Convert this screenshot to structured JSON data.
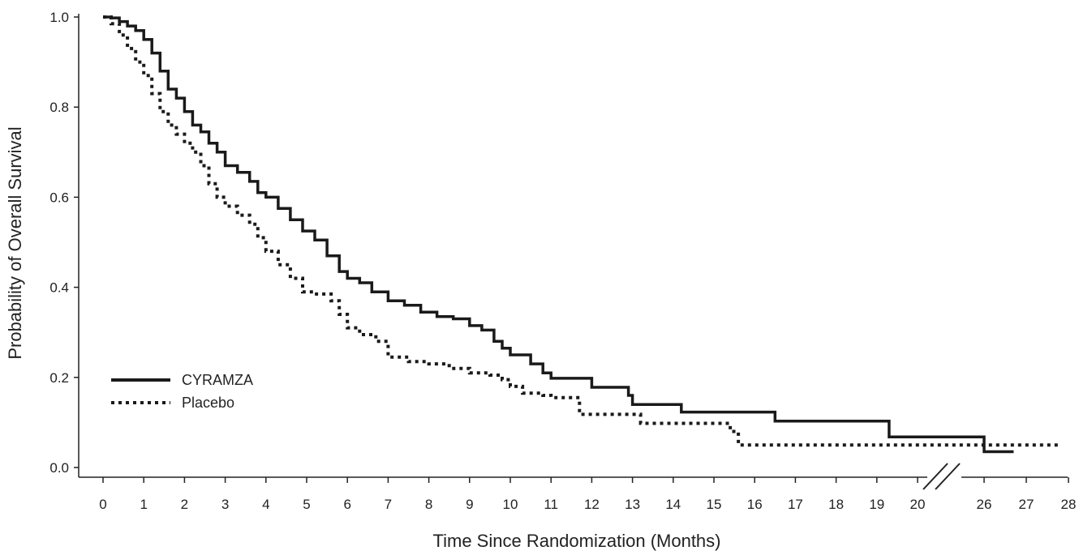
{
  "chart_data": {
    "type": "line",
    "title": "",
    "xlabel": "Time Since Randomization (Months)",
    "ylabel": "Probability of Overall Survival",
    "ylim": [
      0,
      1.0
    ],
    "y_ticks": [
      "0.0",
      "0.2",
      "0.4",
      "0.6",
      "0.8",
      "1.0"
    ],
    "x_ticks": [
      "0",
      "1",
      "2",
      "3",
      "4",
      "5",
      "6",
      "7",
      "8",
      "9",
      "10",
      "11",
      "12",
      "13",
      "14",
      "15",
      "16",
      "17",
      "18",
      "19",
      "20",
      "26",
      "27",
      "28"
    ],
    "x_axis_break": "between 20 and 26",
    "grid": false,
    "legend_position": "bottom-left",
    "series": [
      {
        "name": "CYRAMZA",
        "style": "solid",
        "color": "#1a1a1a",
        "x": [
          0,
          0.2,
          0.4,
          0.6,
          0.8,
          1.0,
          1.2,
          1.4,
          1.6,
          1.8,
          2.0,
          2.2,
          2.4,
          2.6,
          2.8,
          3.0,
          3.3,
          3.6,
          3.8,
          4.0,
          4.3,
          4.6,
          4.9,
          5.2,
          5.5,
          5.8,
          6.0,
          6.3,
          6.6,
          7.0,
          7.4,
          7.8,
          8.2,
          8.6,
          9.0,
          9.3,
          9.6,
          9.8,
          10.0,
          10.5,
          10.8,
          11.0,
          11.5,
          12.0,
          12.5,
          12.9,
          13.0,
          13.5,
          14.0,
          14.2,
          15.0,
          16.0,
          16.5,
          17.0,
          18.0,
          19.0,
          19.3,
          20.0,
          20.7,
          25.0,
          26.0,
          26.7
        ],
        "y": [
          1.0,
          0.998,
          0.99,
          0.98,
          0.97,
          0.95,
          0.92,
          0.88,
          0.84,
          0.82,
          0.79,
          0.76,
          0.745,
          0.72,
          0.7,
          0.67,
          0.655,
          0.635,
          0.61,
          0.6,
          0.575,
          0.55,
          0.525,
          0.505,
          0.47,
          0.435,
          0.42,
          0.41,
          0.39,
          0.37,
          0.36,
          0.345,
          0.335,
          0.33,
          0.315,
          0.305,
          0.28,
          0.265,
          0.25,
          0.23,
          0.21,
          0.198,
          0.198,
          0.178,
          0.178,
          0.16,
          0.14,
          0.14,
          0.14,
          0.123,
          0.123,
          0.123,
          0.103,
          0.103,
          0.103,
          0.103,
          0.068,
          0.068,
          0.068,
          0.068,
          0.035,
          0.035
        ]
      },
      {
        "name": "Placebo",
        "style": "dotted",
        "color": "#1a1a1a",
        "x": [
          0,
          0.2,
          0.4,
          0.6,
          0.8,
          1.0,
          1.2,
          1.4,
          1.6,
          1.8,
          2.0,
          2.2,
          2.4,
          2.6,
          2.8,
          3.0,
          3.3,
          3.6,
          3.8,
          4.0,
          4.3,
          4.6,
          4.9,
          5.2,
          5.6,
          5.8,
          6.0,
          6.3,
          6.7,
          7.0,
          7.5,
          8.0,
          8.5,
          9.0,
          9.5,
          9.8,
          10.0,
          10.3,
          10.8,
          11.0,
          11.7,
          12.0,
          12.6,
          13.0,
          13.2,
          14.0,
          15.0,
          15.4,
          15.6,
          16.0,
          17.0,
          18.0,
          19.0,
          20.0,
          25.0,
          26.0,
          27.0,
          27.8
        ],
        "y": [
          1.0,
          0.985,
          0.96,
          0.93,
          0.9,
          0.87,
          0.83,
          0.79,
          0.76,
          0.74,
          0.72,
          0.7,
          0.67,
          0.63,
          0.6,
          0.58,
          0.56,
          0.54,
          0.51,
          0.48,
          0.45,
          0.42,
          0.39,
          0.385,
          0.37,
          0.34,
          0.31,
          0.295,
          0.28,
          0.245,
          0.235,
          0.23,
          0.22,
          0.21,
          0.205,
          0.195,
          0.18,
          0.165,
          0.16,
          0.155,
          0.118,
          0.118,
          0.118,
          0.118,
          0.098,
          0.098,
          0.098,
          0.08,
          0.05,
          0.05,
          0.05,
          0.05,
          0.05,
          0.05,
          0.05,
          0.05,
          0.05,
          0.05
        ]
      }
    ]
  }
}
